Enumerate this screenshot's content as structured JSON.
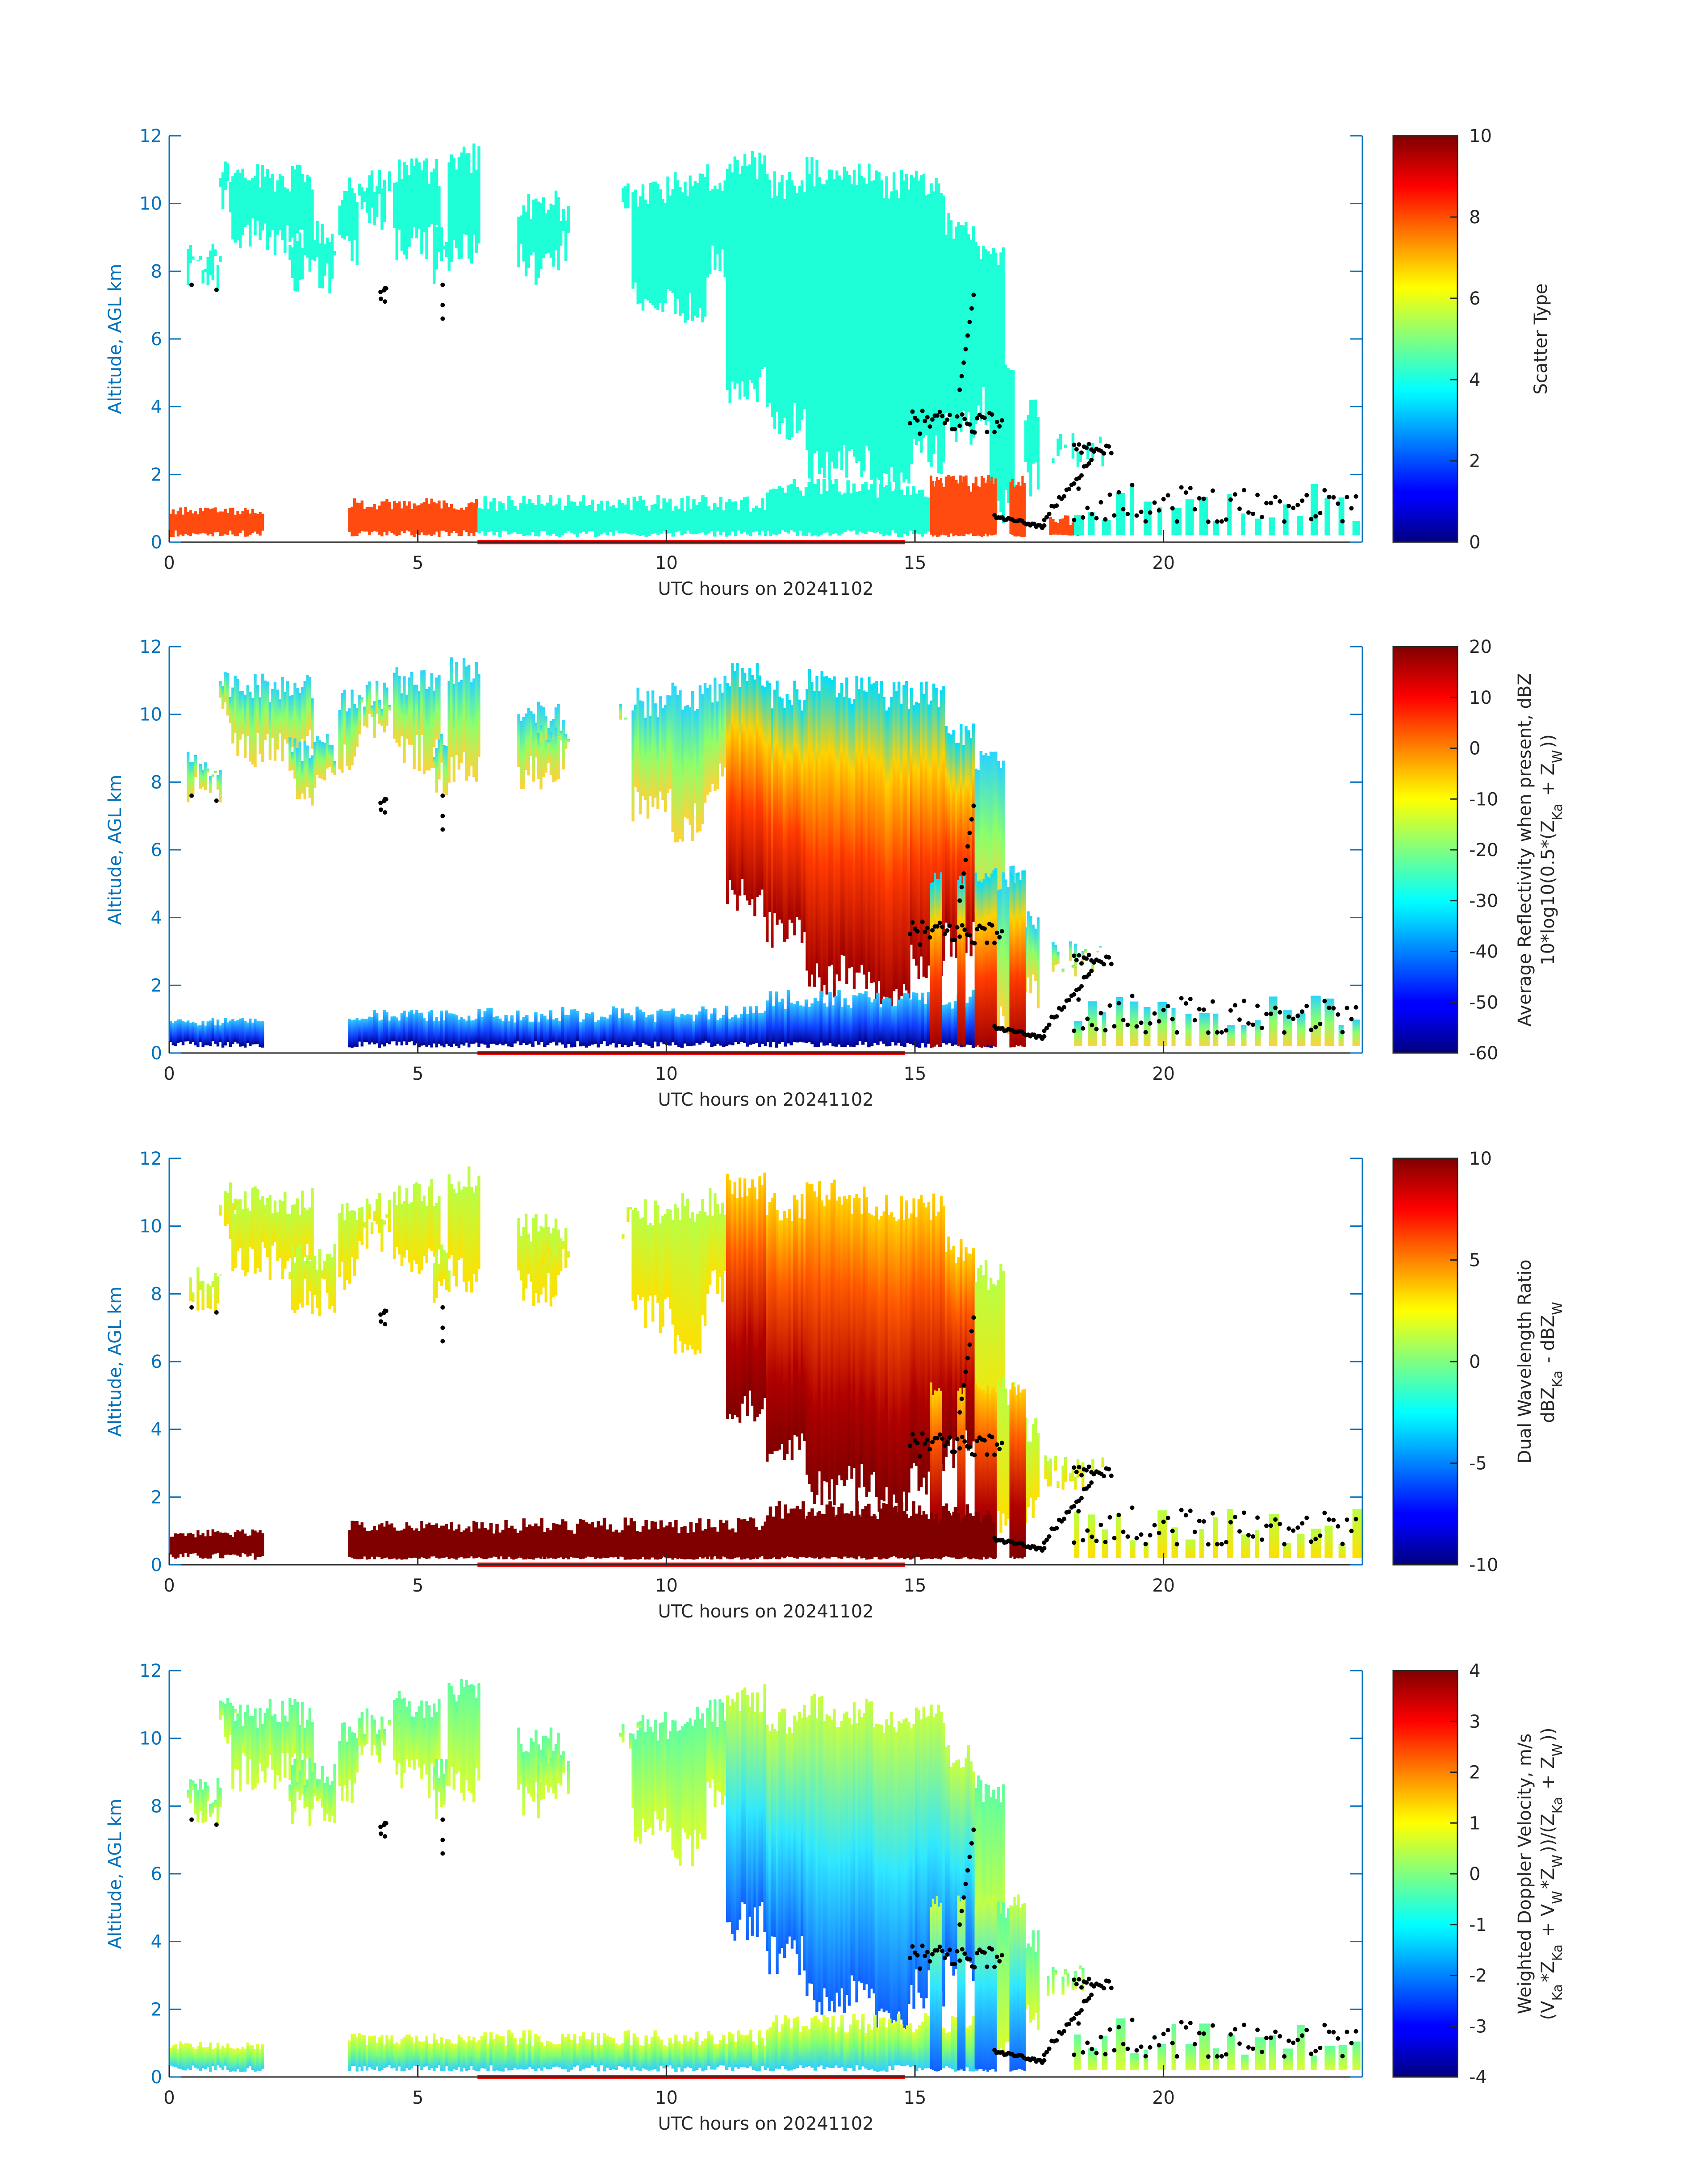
{
  "chart_data": [
    {
      "type": "heatmap",
      "xlabel": "UTC hours on 20241102",
      "ylabel": "Altitude, AGL km",
      "xlim": [
        0,
        24
      ],
      "ylim": [
        0,
        12
      ],
      "xticks": [
        "0",
        "5",
        "10",
        "15",
        "20"
      ],
      "yticks": [
        "0",
        "2",
        "4",
        "6",
        "8",
        "10",
        "12"
      ],
      "colorbar": {
        "label": [
          "Scatter Type"
        ],
        "range": [
          0,
          10
        ],
        "ticks": [
          "0",
          "2",
          "4",
          "6",
          "8",
          "10"
        ],
        "colormap": "jet"
      },
      "shaded_interval_hours": [
        6.2,
        14.8
      ],
      "shaded_interval_color": "#ff0000"
    },
    {
      "type": "heatmap",
      "xlabel": "UTC hours on 20241102",
      "ylabel": "Altitude, AGL km",
      "xlim": [
        0,
        24
      ],
      "ylim": [
        0,
        12
      ],
      "xticks": [
        "0",
        "5",
        "10",
        "15",
        "20"
      ],
      "yticks": [
        "0",
        "2",
        "4",
        "6",
        "8",
        "10",
        "12"
      ],
      "colorbar": {
        "label": [
          "Average Reflectivity when present, dBZ",
          "10*log10(0.5*(Z_Ka + Z_W))"
        ],
        "range": [
          -60,
          20
        ],
        "ticks": [
          "-60",
          "-50",
          "-40",
          "-30",
          "-20",
          "-10",
          "0",
          "10",
          "20"
        ],
        "colormap": "jet"
      },
      "shaded_interval_hours": [
        6.2,
        14.8
      ],
      "shaded_interval_color": "#ff0000"
    },
    {
      "type": "heatmap",
      "xlabel": "UTC hours on 20241102",
      "ylabel": "Altitude, AGL km",
      "xlim": [
        0,
        24
      ],
      "ylim": [
        0,
        12
      ],
      "xticks": [
        "0",
        "5",
        "10",
        "15",
        "20"
      ],
      "yticks": [
        "0",
        "2",
        "4",
        "6",
        "8",
        "10",
        "12"
      ],
      "colorbar": {
        "label": [
          "Dual Wavelength Ratio",
          "dBZ_Ka - dBZ_W"
        ],
        "range": [
          -10,
          10
        ],
        "ticks": [
          "-10",
          "-5",
          "0",
          "5",
          "10"
        ],
        "colormap": "jet"
      },
      "shaded_interval_hours": [
        6.2,
        14.8
      ],
      "shaded_interval_color": "#ff0000"
    },
    {
      "type": "heatmap",
      "xlabel": "UTC hours on 20241102",
      "ylabel": "Altitude, AGL km",
      "xlim": [
        0,
        24
      ],
      "ylim": [
        0,
        12
      ],
      "xticks": [
        "0",
        "5",
        "10",
        "15",
        "20"
      ],
      "yticks": [
        "0",
        "2",
        "4",
        "6",
        "8",
        "10",
        "12"
      ],
      "colorbar": {
        "label": [
          "Weighted Doppler Velocity, m/s",
          "(V_Ka*Z_Ka + V_W*Z_W))/(Z_Ka + Z_W))"
        ],
        "range": [
          -4,
          4
        ],
        "ticks": [
          "-4",
          "-3",
          "-2",
          "-1",
          "0",
          "1",
          "2",
          "3",
          "4"
        ],
        "colormap": "jet"
      },
      "shaded_interval_hours": [
        6.2,
        14.8
      ],
      "shaded_interval_color": "#ff0000"
    }
  ],
  "colors": {
    "axis": "#0072bd",
    "text": "#262626",
    "cloud_cyan": "#1effd8",
    "precip_orange": "#ff4a10",
    "dwr_dark_red": "#800000",
    "marker": "#000000"
  }
}
